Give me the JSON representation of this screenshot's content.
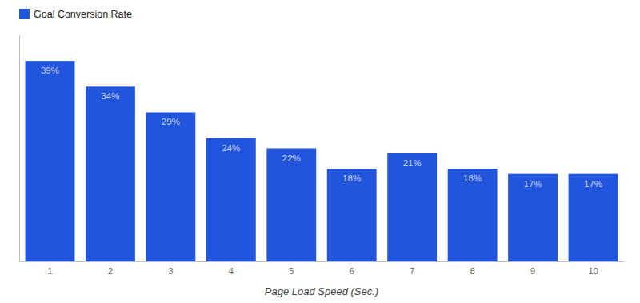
{
  "chart_data": {
    "type": "bar",
    "xlabel": "Page Load Speed (Sec.)",
    "categories": [
      1,
      2,
      3,
      4,
      5,
      6,
      7,
      8,
      9,
      10
    ],
    "series": [
      {
        "name": "Goal Conversion Rate",
        "color": "#2255dd",
        "values": [
          39,
          34,
          29,
          24,
          22,
          18,
          21,
          18,
          17,
          17
        ],
        "value_labels": [
          "39%",
          "34%",
          "29%",
          "24%",
          "22%",
          "18%",
          "21%",
          "18%",
          "17%",
          "17%"
        ]
      }
    ],
    "ylim": [
      0,
      44
    ],
    "legend": "top-left",
    "data_labels": true,
    "tick_labels": "x",
    "grid": false
  }
}
